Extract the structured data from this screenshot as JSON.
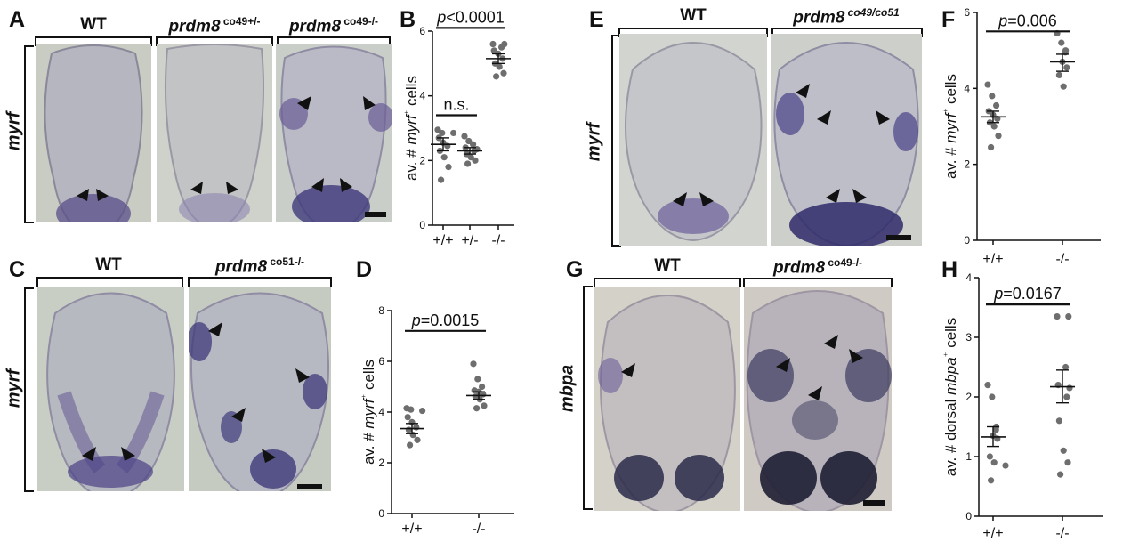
{
  "panels": {
    "A": {
      "letter": "A",
      "tissue_label": "myrf",
      "images": [
        {
          "head": "WT",
          "gene": "",
          "sup": ""
        },
        {
          "head": "",
          "gene": "prdm8",
          "sup": " co49+/-"
        },
        {
          "head": "",
          "gene": "prdm8",
          "sup": " co49-/-"
        }
      ]
    },
    "C": {
      "letter": "C",
      "tissue_label": "myrf",
      "images": [
        {
          "head": "WT",
          "gene": "",
          "sup": ""
        },
        {
          "head": "",
          "gene": "prdm8",
          "sup": " co51-/-"
        }
      ]
    },
    "E": {
      "letter": "E",
      "tissue_label": "myrf",
      "images": [
        {
          "head": "WT",
          "gene": "",
          "sup": ""
        },
        {
          "head": "",
          "gene": "prdm8",
          "sup": " co49/co51"
        }
      ]
    },
    "G": {
      "letter": "G",
      "tissue_label": "mbpa",
      "images": [
        {
          "head": "WT",
          "gene": "",
          "sup": ""
        },
        {
          "head": "",
          "gene": "prdm8",
          "sup": " co49-/-"
        }
      ]
    }
  },
  "chart_data": [
    {
      "panel": "B",
      "type": "scatter",
      "ylabel": "av. # myrf⁺ cells",
      "ylabel_parts": [
        "av. # ",
        "myrf",
        "⁺",
        " cells"
      ],
      "ylim": [
        0,
        6
      ],
      "yticks": [
        0,
        2,
        4,
        6
      ],
      "categories": [
        "+/+",
        "+/-",
        "-/-"
      ],
      "points": [
        [
          2.95,
          2.85,
          2.85,
          2.7,
          2.55,
          2.45,
          2.3,
          2.1,
          1.8,
          1.4
        ],
        [
          2.75,
          2.6,
          2.5,
          2.4,
          2.35,
          2.3,
          2.2,
          2.1,
          2.0,
          1.9
        ],
        [
          5.6,
          5.6,
          5.5,
          5.4,
          5.3,
          5.15,
          5.0,
          4.9,
          4.7,
          4.6
        ]
      ],
      "mean": [
        2.5,
        2.3,
        5.15
      ],
      "sem_upper": [
        2.7,
        2.4,
        5.3
      ],
      "sem_lower": [
        2.3,
        2.2,
        5.0
      ],
      "comparisons": [
        {
          "from": 0,
          "to": 1,
          "y": 3.4,
          "label": "n.s.",
          "italic_p": false
        },
        {
          "from": 0,
          "to": 2,
          "y": 6.1,
          "label": "p<0.0001",
          "italic_p": true
        }
      ]
    },
    {
      "panel": "D",
      "type": "scatter",
      "ylabel": "av. # myrf⁺ cells",
      "ylabel_parts": [
        "av. # ",
        "myrf",
        "⁺",
        " cells"
      ],
      "ylim": [
        0,
        8
      ],
      "yticks": [
        0,
        2,
        4,
        6,
        8
      ],
      "categories": [
        "+/+",
        "-/-"
      ],
      "points": [
        [
          4.15,
          4.1,
          4.05,
          3.8,
          3.6,
          3.4,
          3.3,
          3.1,
          2.9,
          2.7
        ],
        [
          5.9,
          5.3,
          5.0,
          4.85,
          4.8,
          4.7,
          4.6,
          4.5,
          4.25,
          4.15
        ]
      ],
      "mean": [
        3.35,
        4.65
      ],
      "sem_upper": [
        3.55,
        4.8
      ],
      "sem_lower": [
        3.15,
        4.5
      ],
      "comparisons": [
        {
          "from": 0,
          "to": 1,
          "y": 7.2,
          "label": "p=0.0015",
          "italic_p": true
        }
      ]
    },
    {
      "panel": "F",
      "type": "scatter",
      "ylabel": "av. # myrf⁺ cells",
      "ylabel_parts": [
        "av. # ",
        "myrf",
        "⁺",
        " cells"
      ],
      "ylim": [
        0,
        6
      ],
      "yticks": [
        0,
        2,
        4,
        6
      ],
      "categories": [
        "+/+",
        "-/-"
      ],
      "points": [
        [
          4.1,
          3.8,
          3.55,
          3.4,
          3.3,
          3.2,
          3.1,
          3.0,
          2.75,
          2.45
        ],
        [
          5.45,
          5.2,
          5.0,
          4.95,
          4.7,
          4.55,
          4.35,
          4.05
        ]
      ],
      "mean": [
        3.25,
        4.7
      ],
      "sem_upper": [
        3.4,
        4.9
      ],
      "sem_lower": [
        3.1,
        4.45
      ],
      "comparisons": [
        {
          "from": 0,
          "to": 1,
          "y": 5.5,
          "label": "p=0.006",
          "italic_p": true
        }
      ]
    },
    {
      "panel": "H",
      "type": "scatter",
      "ylabel": "av. # dorsal mbpa⁺ cells",
      "ylabel_parts": [
        "av. # dorsal ",
        "mbpa",
        "⁺",
        " cells"
      ],
      "ylim": [
        0,
        4
      ],
      "yticks": [
        0,
        1,
        2,
        3,
        4
      ],
      "categories": [
        "+/+",
        "-/-"
      ],
      "points": [
        [
          2.2,
          2.0,
          1.5,
          1.45,
          1.35,
          1.3,
          1.0,
          0.9,
          0.85,
          0.6
        ],
        [
          3.35,
          3.35,
          2.5,
          2.2,
          2.15,
          2.0,
          1.6,
          1.1,
          0.9,
          0.7
        ]
      ],
      "mean": [
        1.33,
        2.17
      ],
      "sem_upper": [
        1.5,
        2.45
      ],
      "sem_lower": [
        1.17,
        1.9
      ],
      "comparisons": [
        {
          "from": 0,
          "to": 1,
          "y": 3.55,
          "label": "p=0.0167",
          "italic_p": true
        }
      ]
    }
  ]
}
